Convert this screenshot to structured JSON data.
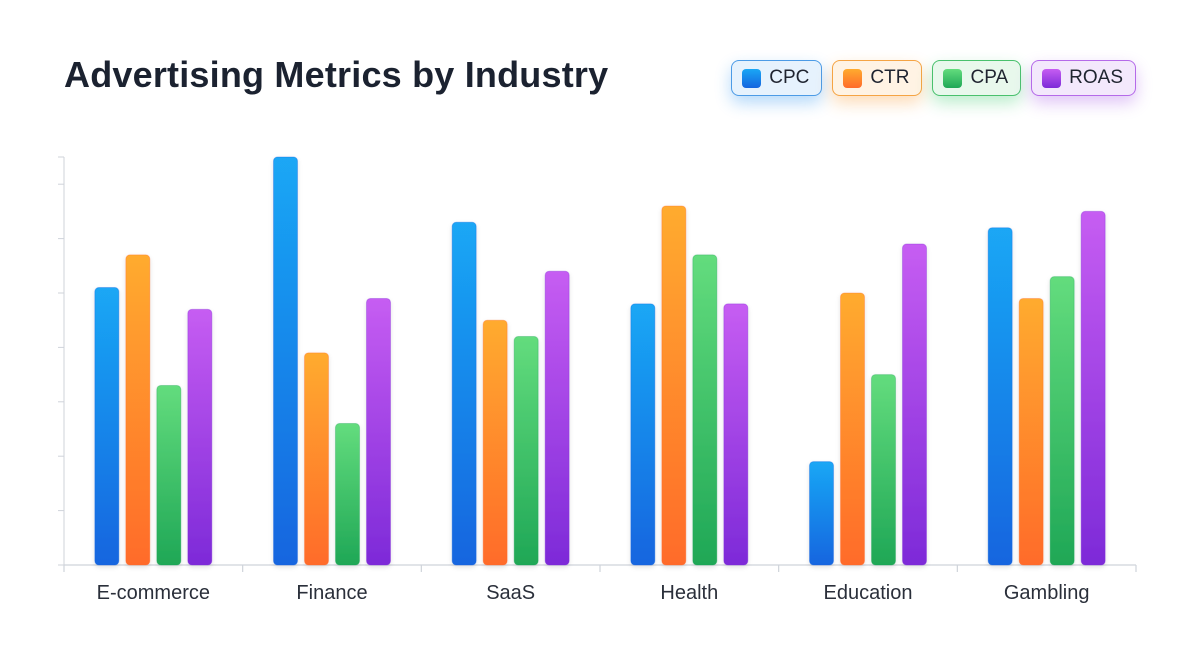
{
  "chart_data": {
    "type": "bar",
    "title": "Advertising Metrics by Industry",
    "xlabel": "",
    "ylabel": "",
    "categories": [
      "E-commerce",
      "Finance",
      "SaaS",
      "Health",
      "Education",
      "Gambling"
    ],
    "series": [
      {
        "key": "cpc",
        "name": "CPC",
        "values": [
          51,
          75,
          63,
          48,
          19,
          62
        ]
      },
      {
        "key": "ctr",
        "name": "CTR",
        "values": [
          57,
          39,
          45,
          66,
          50,
          49
        ]
      },
      {
        "key": "cpa",
        "name": "CPA",
        "values": [
          33,
          26,
          42,
          57,
          35,
          53
        ]
      },
      {
        "key": "roas",
        "name": "ROAS",
        "values": [
          47,
          49,
          54,
          48,
          59,
          65
        ]
      }
    ],
    "ylim": [
      0,
      75
    ],
    "grid": false,
    "legend_position": "top-right",
    "colors": {
      "cpc": [
        "#1aa7f5",
        "#1565df"
      ],
      "ctr": [
        "#ffab2e",
        "#ff6b2b"
      ],
      "cpa": [
        "#63dc7d",
        "#1fa756"
      ],
      "roas": [
        "#c65df2",
        "#7d2ad8"
      ]
    }
  }
}
